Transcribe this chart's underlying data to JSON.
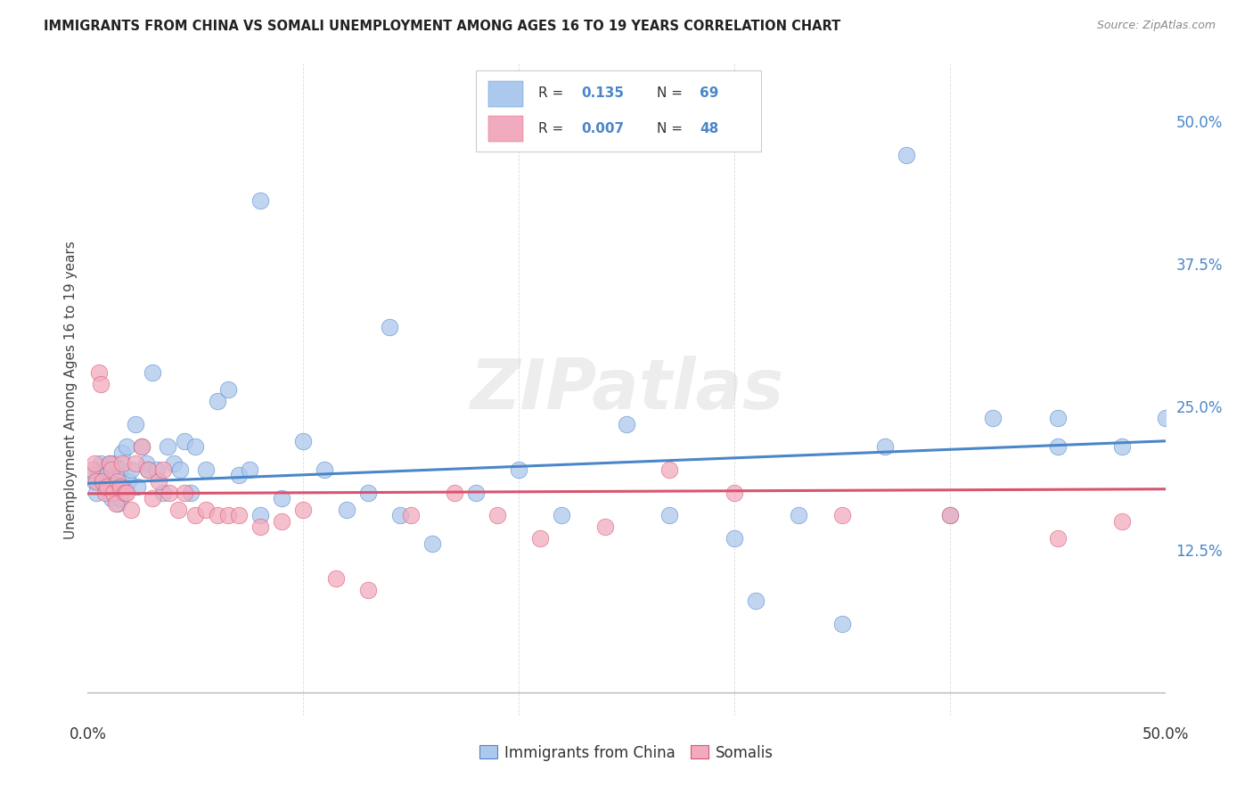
{
  "title": "IMMIGRANTS FROM CHINA VS SOMALI UNEMPLOYMENT AMONG AGES 16 TO 19 YEARS CORRELATION CHART",
  "source": "Source: ZipAtlas.com",
  "ylabel": "Unemployment Among Ages 16 to 19 years",
  "legend_r_china": "R =  0.135",
  "legend_n_china": "N = 69",
  "legend_r_somali": "R = 0.007",
  "legend_n_somali": "N = 48",
  "color_china": "#adc8ed",
  "color_somali": "#f2abbe",
  "line_color_china": "#4a86c8",
  "line_color_somali": "#d9546e",
  "watermark": "ZIPatlas",
  "xlim": [
    0.0,
    0.5
  ],
  "ylim": [
    -0.02,
    0.55
  ],
  "china_x": [
    0.002,
    0.003,
    0.004,
    0.005,
    0.006,
    0.007,
    0.008,
    0.008,
    0.009,
    0.01,
    0.01,
    0.011,
    0.012,
    0.012,
    0.013,
    0.014,
    0.015,
    0.015,
    0.016,
    0.017,
    0.018,
    0.019,
    0.02,
    0.022,
    0.023,
    0.025,
    0.027,
    0.028,
    0.03,
    0.032,
    0.035,
    0.037,
    0.04,
    0.043,
    0.045,
    0.048,
    0.05,
    0.055,
    0.06,
    0.065,
    0.07,
    0.075,
    0.08,
    0.09,
    0.1,
    0.11,
    0.12,
    0.13,
    0.145,
    0.16,
    0.18,
    0.2,
    0.22,
    0.25,
    0.27,
    0.3,
    0.33,
    0.37,
    0.4,
    0.42,
    0.45,
    0.48,
    0.5,
    0.31,
    0.35,
    0.08,
    0.14,
    0.38,
    0.45
  ],
  "china_y": [
    0.19,
    0.185,
    0.175,
    0.195,
    0.2,
    0.185,
    0.18,
    0.195,
    0.19,
    0.185,
    0.2,
    0.17,
    0.175,
    0.2,
    0.19,
    0.165,
    0.195,
    0.17,
    0.21,
    0.18,
    0.215,
    0.185,
    0.195,
    0.235,
    0.18,
    0.215,
    0.2,
    0.195,
    0.28,
    0.195,
    0.175,
    0.215,
    0.2,
    0.195,
    0.22,
    0.175,
    0.215,
    0.195,
    0.255,
    0.265,
    0.19,
    0.195,
    0.155,
    0.17,
    0.22,
    0.195,
    0.16,
    0.175,
    0.155,
    0.13,
    0.175,
    0.195,
    0.155,
    0.235,
    0.155,
    0.135,
    0.155,
    0.215,
    0.155,
    0.24,
    0.215,
    0.215,
    0.24,
    0.08,
    0.06,
    0.43,
    0.32,
    0.47,
    0.24
  ],
  "somali_x": [
    0.002,
    0.003,
    0.004,
    0.005,
    0.006,
    0.007,
    0.008,
    0.009,
    0.01,
    0.011,
    0.012,
    0.013,
    0.014,
    0.015,
    0.016,
    0.017,
    0.018,
    0.02,
    0.022,
    0.025,
    0.028,
    0.03,
    0.033,
    0.035,
    0.038,
    0.042,
    0.045,
    0.05,
    0.055,
    0.06,
    0.065,
    0.07,
    0.08,
    0.09,
    0.1,
    0.115,
    0.13,
    0.15,
    0.17,
    0.19,
    0.21,
    0.24,
    0.27,
    0.3,
    0.35,
    0.4,
    0.45,
    0.48
  ],
  "somali_y": [
    0.195,
    0.2,
    0.185,
    0.28,
    0.27,
    0.185,
    0.175,
    0.18,
    0.2,
    0.195,
    0.175,
    0.165,
    0.185,
    0.18,
    0.2,
    0.175,
    0.175,
    0.16,
    0.2,
    0.215,
    0.195,
    0.17,
    0.185,
    0.195,
    0.175,
    0.16,
    0.175,
    0.155,
    0.16,
    0.155,
    0.155,
    0.155,
    0.145,
    0.15,
    0.16,
    0.1,
    0.09,
    0.155,
    0.175,
    0.155,
    0.135,
    0.145,
    0.195,
    0.175,
    0.155,
    0.155,
    0.135,
    0.15
  ]
}
